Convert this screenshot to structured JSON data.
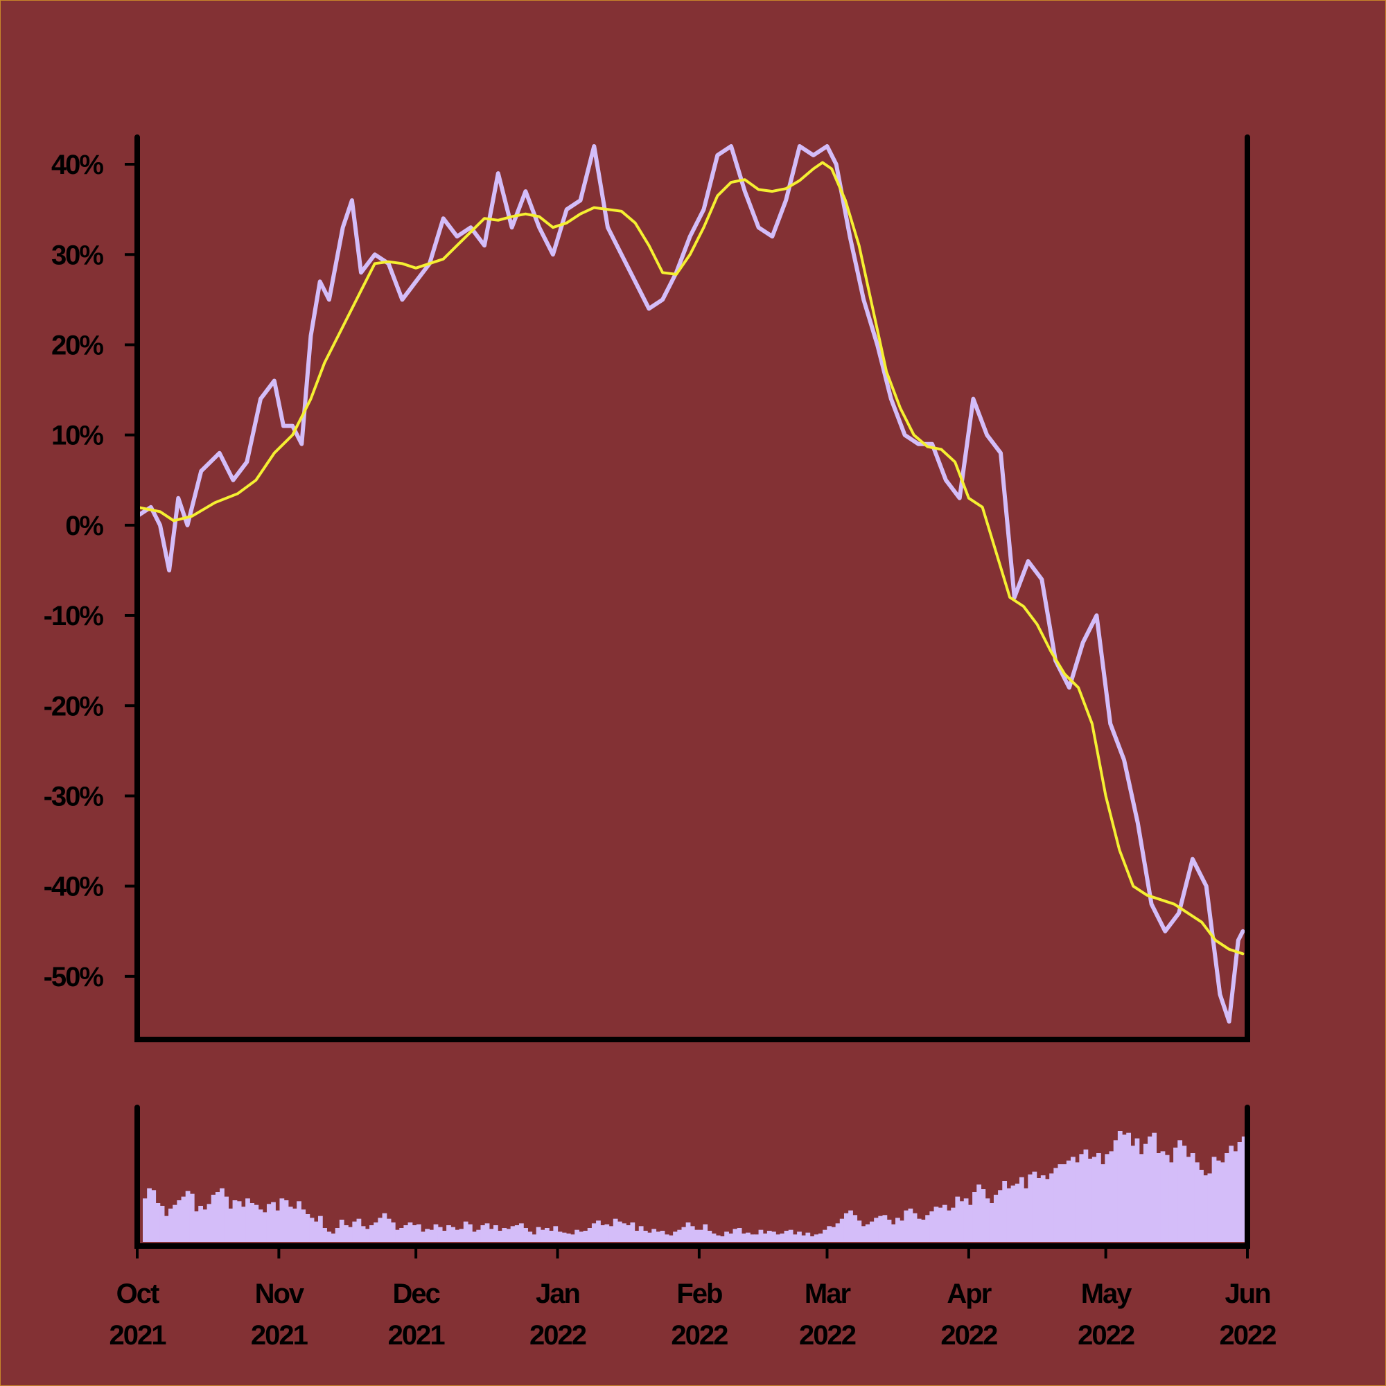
{
  "chart_data": {
    "type": "line",
    "x_range": [
      "2021-10-01",
      "2022-05-31"
    ],
    "y_range_percent": [
      -57,
      43
    ],
    "y_ticks": [
      {
        "value": 40,
        "label": "40%"
      },
      {
        "value": 30,
        "label": "30%"
      },
      {
        "value": 20,
        "label": "20%"
      },
      {
        "value": 10,
        "label": "10%"
      },
      {
        "value": 0,
        "label": "0%"
      },
      {
        "value": -10,
        "label": "-10%"
      },
      {
        "value": -20,
        "label": "-20%"
      },
      {
        "value": -30,
        "label": "-30%"
      },
      {
        "value": -40,
        "label": "-40%"
      },
      {
        "value": -50,
        "label": "-50%"
      }
    ],
    "x_ticks": [
      {
        "date": "2021-10-01",
        "month": "Oct",
        "year": "2021"
      },
      {
        "date": "2021-11-01",
        "month": "Nov",
        "year": "2021"
      },
      {
        "date": "2021-12-01",
        "month": "Dec",
        "year": "2021"
      },
      {
        "date": "2022-01-01",
        "month": "Jan",
        "year": "2022"
      },
      {
        "date": "2022-02-01",
        "month": "Feb",
        "year": "2022"
      },
      {
        "date": "2022-03-01",
        "month": "Mar",
        "year": "2022"
      },
      {
        "date": "2022-04-01",
        "month": "Apr",
        "year": "2022"
      },
      {
        "date": "2022-05-01",
        "month": "May",
        "year": "2022"
      },
      {
        "date": "2022-06-01",
        "month": "Jun",
        "year": "2022"
      }
    ],
    "series": [
      {
        "role": "daily change",
        "color": "#d4bdf9",
        "points": [
          [
            "2021-10-01",
            1
          ],
          [
            "2021-10-04",
            2
          ],
          [
            "2021-10-06",
            0
          ],
          [
            "2021-10-08",
            -5
          ],
          [
            "2021-10-10",
            3
          ],
          [
            "2021-10-12",
            0
          ],
          [
            "2021-10-15",
            6
          ],
          [
            "2021-10-19",
            8
          ],
          [
            "2021-10-22",
            5
          ],
          [
            "2021-10-25",
            7
          ],
          [
            "2021-10-28",
            14
          ],
          [
            "2021-10-31",
            16
          ],
          [
            "2021-11-02",
            11
          ],
          [
            "2021-11-04",
            11
          ],
          [
            "2021-11-06",
            9
          ],
          [
            "2021-11-08",
            21
          ],
          [
            "2021-11-10",
            27
          ],
          [
            "2021-11-12",
            25
          ],
          [
            "2021-11-15",
            33
          ],
          [
            "2021-11-17",
            36
          ],
          [
            "2021-11-19",
            28
          ],
          [
            "2021-11-22",
            30
          ],
          [
            "2021-11-25",
            29
          ],
          [
            "2021-11-28",
            25
          ],
          [
            "2021-12-01",
            27
          ],
          [
            "2021-12-04",
            29
          ],
          [
            "2021-12-07",
            34
          ],
          [
            "2021-12-10",
            32
          ],
          [
            "2021-12-13",
            33
          ],
          [
            "2021-12-16",
            31
          ],
          [
            "2021-12-19",
            39
          ],
          [
            "2021-12-22",
            33
          ],
          [
            "2021-12-25",
            37
          ],
          [
            "2021-12-28",
            33
          ],
          [
            "2021-12-31",
            30
          ],
          [
            "2022-01-03",
            35
          ],
          [
            "2022-01-06",
            36
          ],
          [
            "2022-01-09",
            42
          ],
          [
            "2022-01-12",
            33
          ],
          [
            "2022-01-15",
            30
          ],
          [
            "2022-01-18",
            27
          ],
          [
            "2022-01-21",
            24
          ],
          [
            "2022-01-24",
            25
          ],
          [
            "2022-01-27",
            28
          ],
          [
            "2022-01-30",
            32
          ],
          [
            "2022-02-02",
            35
          ],
          [
            "2022-02-05",
            41
          ],
          [
            "2022-02-08",
            42
          ],
          [
            "2022-02-11",
            37
          ],
          [
            "2022-02-14",
            33
          ],
          [
            "2022-02-17",
            32
          ],
          [
            "2022-02-20",
            36
          ],
          [
            "2022-02-23",
            42
          ],
          [
            "2022-02-26",
            41
          ],
          [
            "2022-03-01",
            42
          ],
          [
            "2022-03-03",
            40
          ],
          [
            "2022-03-06",
            32
          ],
          [
            "2022-03-09",
            25
          ],
          [
            "2022-03-12",
            20
          ],
          [
            "2022-03-15",
            14
          ],
          [
            "2022-03-18",
            10
          ],
          [
            "2022-03-21",
            9
          ],
          [
            "2022-03-24",
            9
          ],
          [
            "2022-03-27",
            5
          ],
          [
            "2022-03-30",
            3
          ],
          [
            "2022-04-02",
            14
          ],
          [
            "2022-04-05",
            10
          ],
          [
            "2022-04-08",
            8
          ],
          [
            "2022-04-11",
            -8
          ],
          [
            "2022-04-14",
            -4
          ],
          [
            "2022-04-17",
            -6
          ],
          [
            "2022-04-20",
            -15
          ],
          [
            "2022-04-23",
            -18
          ],
          [
            "2022-04-26",
            -13
          ],
          [
            "2022-04-29",
            -10
          ],
          [
            "2022-05-02",
            -22
          ],
          [
            "2022-05-05",
            -26
          ],
          [
            "2022-05-08",
            -33
          ],
          [
            "2022-05-11",
            -42
          ],
          [
            "2022-05-14",
            -45
          ],
          [
            "2022-05-17",
            -43
          ],
          [
            "2022-05-20",
            -37
          ],
          [
            "2022-05-23",
            -40
          ],
          [
            "2022-05-26",
            -52
          ],
          [
            "2022-05-28",
            -55
          ],
          [
            "2022-05-30",
            -46
          ],
          [
            "2022-05-31",
            -45
          ]
        ]
      },
      {
        "role": "moving average",
        "color": "#f5f032",
        "points": [
          [
            "2021-10-01",
            2
          ],
          [
            "2021-10-06",
            1.5
          ],
          [
            "2021-10-09",
            0.5
          ],
          [
            "2021-10-13",
            1
          ],
          [
            "2021-10-18",
            2.5
          ],
          [
            "2021-10-23",
            3.5
          ],
          [
            "2021-10-27",
            5
          ],
          [
            "2021-10-31",
            8
          ],
          [
            "2021-11-04",
            10
          ],
          [
            "2021-11-08",
            14
          ],
          [
            "2021-11-11",
            18
          ],
          [
            "2021-11-15",
            22
          ],
          [
            "2021-11-19",
            26
          ],
          [
            "2021-11-22",
            29
          ],
          [
            "2021-11-25",
            29.2
          ],
          [
            "2021-11-28",
            29
          ],
          [
            "2021-12-01",
            28.5
          ],
          [
            "2021-12-04",
            29
          ],
          [
            "2021-12-07",
            29.5
          ],
          [
            "2021-12-10",
            31
          ],
          [
            "2021-12-13",
            32.5
          ],
          [
            "2021-12-16",
            34
          ],
          [
            "2021-12-19",
            33.8
          ],
          [
            "2021-12-22",
            34.2
          ],
          [
            "2021-12-25",
            34.5
          ],
          [
            "2021-12-28",
            34.2
          ],
          [
            "2021-12-31",
            33
          ],
          [
            "2022-01-03",
            33.5
          ],
          [
            "2022-01-06",
            34.5
          ],
          [
            "2022-01-09",
            35.2
          ],
          [
            "2022-01-12",
            35
          ],
          [
            "2022-01-15",
            34.8
          ],
          [
            "2022-01-18",
            33.5
          ],
          [
            "2022-01-21",
            31
          ],
          [
            "2022-01-24",
            28
          ],
          [
            "2022-01-27",
            27.8
          ],
          [
            "2022-01-30",
            30
          ],
          [
            "2022-02-02",
            33
          ],
          [
            "2022-02-05",
            36.5
          ],
          [
            "2022-02-08",
            38
          ],
          [
            "2022-02-11",
            38.3
          ],
          [
            "2022-02-14",
            37.2
          ],
          [
            "2022-02-17",
            37
          ],
          [
            "2022-02-20",
            37.3
          ],
          [
            "2022-02-23",
            38.2
          ],
          [
            "2022-02-26",
            39.5
          ],
          [
            "2022-02-28",
            40.2
          ],
          [
            "2022-03-02",
            39.5
          ],
          [
            "2022-03-05",
            36
          ],
          [
            "2022-03-08",
            31
          ],
          [
            "2022-03-11",
            24
          ],
          [
            "2022-03-14",
            17
          ],
          [
            "2022-03-17",
            13
          ],
          [
            "2022-03-20",
            10
          ],
          [
            "2022-03-23",
            8.7
          ],
          [
            "2022-03-26",
            8.4
          ],
          [
            "2022-03-29",
            7
          ],
          [
            "2022-04-01",
            3
          ],
          [
            "2022-04-04",
            2
          ],
          [
            "2022-04-07",
            -3
          ],
          [
            "2022-04-10",
            -8
          ],
          [
            "2022-04-13",
            -9
          ],
          [
            "2022-04-16",
            -11
          ],
          [
            "2022-04-19",
            -14
          ],
          [
            "2022-04-22",
            -16.5
          ],
          [
            "2022-04-25",
            -18
          ],
          [
            "2022-04-28",
            -22
          ],
          [
            "2022-05-01",
            -30
          ],
          [
            "2022-05-04",
            -36
          ],
          [
            "2022-05-07",
            -40
          ],
          [
            "2022-05-10",
            -41
          ],
          [
            "2022-05-13",
            -41.5
          ],
          [
            "2022-05-16",
            -42
          ],
          [
            "2022-05-19",
            -43
          ],
          [
            "2022-05-22",
            -44
          ],
          [
            "2022-05-25",
            -46
          ],
          [
            "2022-05-28",
            -47
          ],
          [
            "2022-05-31",
            -47.5
          ]
        ]
      }
    ],
    "volume": {
      "color": "#d4bdf9",
      "daily": [
        47,
        58,
        56,
        42,
        39,
        28,
        36,
        40,
        45,
        49,
        55,
        52,
        33,
        39,
        35,
        41,
        51,
        54,
        58,
        49,
        36,
        45,
        44,
        38,
        47,
        42,
        40,
        35,
        32,
        41,
        43,
        34,
        47,
        45,
        38,
        36,
        44,
        35,
        30,
        26,
        22,
        28,
        15,
        11,
        9,
        15,
        24,
        18,
        16,
        22,
        25,
        17,
        14,
        18,
        21,
        26,
        31,
        25,
        21,
        13,
        15,
        18,
        21,
        18,
        19,
        11,
        14,
        13,
        19,
        16,
        12,
        18,
        16,
        13,
        14,
        22,
        19,
        11,
        13,
        18,
        20,
        14,
        18,
        12,
        15,
        14,
        17,
        18,
        20,
        15,
        11,
        8,
        16,
        13,
        15,
        12,
        17,
        11,
        10,
        9,
        8,
        13,
        11,
        12,
        15,
        20,
        23,
        18,
        19,
        17,
        25,
        22,
        20,
        18,
        21,
        12,
        17,
        12,
        10,
        14,
        11,
        12,
        8,
        7,
        11,
        13,
        16,
        21,
        17,
        13,
        13,
        19,
        12,
        9,
        7,
        6,
        11,
        9,
        14,
        15,
        9,
        10,
        8,
        8,
        13,
        9,
        12,
        11,
        8,
        9,
        12,
        13,
        8,
        11,
        7,
        10,
        6,
        8,
        9,
        13,
        17,
        16,
        20,
        25,
        31,
        34,
        29,
        23,
        17,
        19,
        22,
        26,
        28,
        29,
        24,
        19,
        26,
        23,
        34,
        36,
        31,
        25,
        24,
        29,
        33,
        38,
        37,
        40,
        34,
        37,
        49,
        44,
        47,
        40,
        54,
        62,
        57,
        47,
        42,
        51,
        56,
        66,
        58,
        61,
        63,
        70,
        58,
        73,
        76,
        69,
        72,
        68,
        74,
        80,
        84,
        84,
        88,
        92,
        86,
        95,
        100,
        90,
        92,
        96,
        84,
        95,
        98,
        110,
        120,
        116,
        118,
        104,
        112,
        95,
        106,
        114,
        118,
        96,
        98,
        94,
        86,
        102,
        110,
        104,
        92,
        96,
        86,
        78,
        72,
        74,
        92,
        88,
        86,
        96,
        104,
        98,
        108,
        114
      ]
    }
  }
}
